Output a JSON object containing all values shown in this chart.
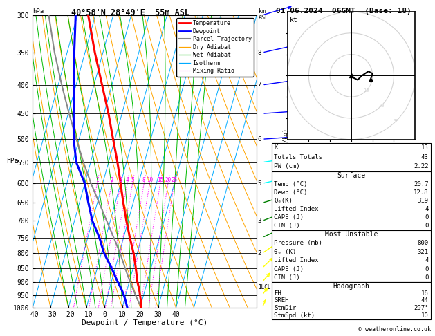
{
  "title_left": "40°58'N 28°49'E  55m ASL",
  "title_right": "01.06.2024  06GMT  (Base: 18)",
  "xlabel": "Dewpoint / Temperature (°C)",
  "pressure_ticks": [
    300,
    350,
    400,
    450,
    500,
    550,
    600,
    650,
    700,
    750,
    800,
    850,
    900,
    950,
    1000
  ],
  "temp_profile": {
    "pressure": [
      1000,
      975,
      950,
      925,
      900,
      850,
      800,
      750,
      700,
      650,
      600,
      550,
      500,
      450,
      400,
      350,
      300
    ],
    "temperature": [
      20.7,
      19.5,
      18.0,
      16.5,
      14.5,
      11.5,
      8.0,
      3.5,
      -1.0,
      -5.5,
      -10.0,
      -15.0,
      -21.0,
      -27.5,
      -35.5,
      -44.5,
      -54.0
    ],
    "color": "#ff0000",
    "linewidth": 2.2
  },
  "dewpoint_profile": {
    "pressure": [
      1000,
      975,
      950,
      925,
      900,
      850,
      800,
      750,
      700,
      650,
      600,
      550,
      500,
      450,
      400,
      350,
      300
    ],
    "temperature": [
      12.8,
      11.0,
      9.0,
      6.5,
      3.5,
      -2.0,
      -8.5,
      -13.5,
      -20.0,
      -25.0,
      -30.0,
      -38.0,
      -43.0,
      -47.0,
      -51.0,
      -56.0,
      -61.0
    ],
    "color": "#0000ff",
    "linewidth": 2.2
  },
  "parcel_profile": {
    "pressure": [
      1000,
      975,
      950,
      920,
      900,
      875,
      850,
      800,
      750,
      700,
      650,
      600,
      550,
      500,
      450,
      400,
      350,
      300
    ],
    "temperature": [
      20.7,
      18.0,
      15.5,
      12.5,
      10.5,
      8.0,
      5.5,
      0.5,
      -5.5,
      -12.0,
      -19.0,
      -26.5,
      -34.0,
      -41.5,
      -49.5,
      -58.0,
      -67.0,
      -76.0
    ],
    "color": "#888888",
    "linewidth": 1.5
  },
  "stats": {
    "K": 13,
    "Totals_Totals": 43,
    "PW_cm": 2.22,
    "Surface_Temp": 20.7,
    "Surface_Dewp": 12.8,
    "Surface_ThetaE": 319,
    "Surface_LiftedIndex": 4,
    "Surface_CAPE": 0,
    "Surface_CIN": 0,
    "MU_Pressure": 800,
    "MU_ThetaE": 321,
    "MU_LiftedIndex": 4,
    "MU_CAPE": 0,
    "MU_CIN": 0,
    "Hodo_EH": 16,
    "Hodo_SREH": 44,
    "Hodo_StmDir": 297,
    "Hodo_StmSpd": 10
  },
  "mixing_ratio_lines": [
    1,
    2,
    3,
    4,
    5,
    8,
    10,
    15,
    20,
    25
  ],
  "dry_adiabat_color": "#ffa500",
  "wet_adiabat_color": "#00bb00",
  "isotherm_color": "#00aaff",
  "mixing_ratio_color": "#ff00ff",
  "lcl_pressure": 920,
  "copyright": "© weatheronline.co.uk",
  "km_labels": {
    "350": "8",
    "400": "7",
    "500": "6",
    "600": "5",
    "700": "3",
    "800": "2",
    "920": "1"
  },
  "wind_barb_pressures": [
    300,
    350,
    400,
    450,
    500,
    550,
    600,
    650,
    700,
    750,
    800,
    850,
    900,
    950,
    1000
  ],
  "wind_barb_speeds": [
    25,
    30,
    35,
    38,
    32,
    22,
    18,
    22,
    20,
    18,
    16,
    14,
    12,
    10,
    10
  ],
  "wind_barb_dirs": [
    250,
    255,
    260,
    265,
    265,
    260,
    255,
    250,
    245,
    240,
    230,
    220,
    215,
    210,
    200
  ],
  "wind_barb_colors": [
    "blue",
    "blue",
    "blue",
    "blue",
    "blue",
    "cyan",
    "cyan",
    "green",
    "green",
    "green",
    "yellow",
    "yellow",
    "yellow",
    "yellow",
    "yellow"
  ]
}
